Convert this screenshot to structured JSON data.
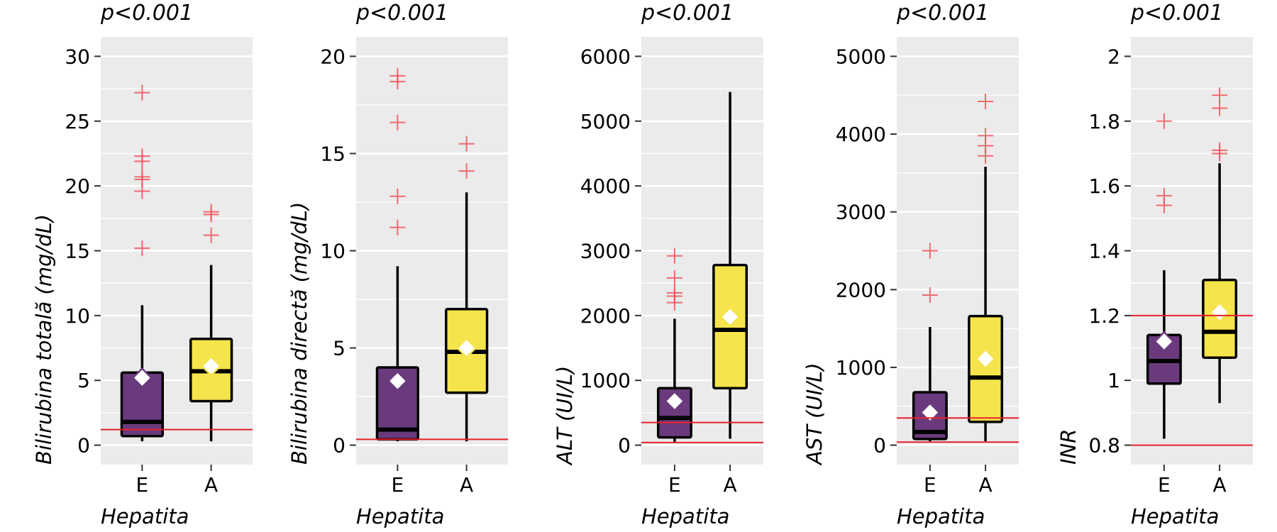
{
  "colors": {
    "panel_bg": "#EBEBEB",
    "grid": "#FFFFFF",
    "box_E": "#6B3A7D",
    "box_A": "#F5E44C",
    "outlier": "#F0545A",
    "ref_line": "#E8202A",
    "mean_marker": "#FFFFFF"
  },
  "chart_data": [
    {
      "type": "box",
      "pvalue": "p<0.001",
      "ylabel": "Bilirubina totală (mg/dL)",
      "xlabel": "Hepatita",
      "categories": [
        "E",
        "A"
      ],
      "ylim": [
        -1.5,
        31.5
      ],
      "yticks": [
        0,
        5,
        10,
        15,
        20,
        25,
        30
      ],
      "ytick_labels": [
        "0",
        "5",
        "10",
        "15",
        "20",
        "25",
        "30"
      ],
      "ref_lines": [
        1.2
      ],
      "boxes": [
        {
          "group": "E",
          "whisker_low": 0.3,
          "q1": 0.7,
          "median": 1.8,
          "q3": 5.6,
          "whisker_high": 10.8,
          "mean": 5.2,
          "outliers": [
            15.2,
            19.6,
            20.5,
            20.7,
            21.9,
            22.3,
            27.2
          ]
        },
        {
          "group": "A",
          "whisker_low": 0.3,
          "q1": 3.4,
          "median": 5.7,
          "q3": 8.2,
          "whisker_high": 13.9,
          "mean": 6.1,
          "outliers": [
            16.2,
            17.8,
            18.0
          ]
        }
      ]
    },
    {
      "type": "box",
      "pvalue": "p<0.001",
      "ylabel": "Bilirubina directă (mg/dL)",
      "xlabel": "Hepatita",
      "categories": [
        "E",
        "A"
      ],
      "ylim": [
        -1.0,
        21.0
      ],
      "yticks": [
        0,
        5,
        10,
        15,
        20
      ],
      "ytick_labels": [
        "0",
        "5",
        "10",
        "15",
        "20"
      ],
      "ref_lines": [
        0.3
      ],
      "boxes": [
        {
          "group": "E",
          "whisker_low": 0.2,
          "q1": 0.3,
          "median": 0.8,
          "q3": 4.0,
          "whisker_high": 9.2,
          "mean": 3.3,
          "outliers": [
            11.2,
            12.8,
            16.6,
            18.7,
            19.0
          ]
        },
        {
          "group": "A",
          "whisker_low": 0.2,
          "q1": 2.7,
          "median": 4.8,
          "q3": 7.0,
          "whisker_high": 13.0,
          "mean": 5.0,
          "outliers": [
            14.1,
            15.5
          ]
        }
      ]
    },
    {
      "type": "box",
      "pvalue": "p<0.001",
      "ylabel": "ALT (UI/L)",
      "xlabel": "Hepatita",
      "categories": [
        "E",
        "A"
      ],
      "ylim": [
        -300,
        6300
      ],
      "yticks": [
        0,
        1000,
        2000,
        3000,
        4000,
        5000,
        6000
      ],
      "ytick_labels": [
        "0",
        "1000",
        "2000",
        "3000",
        "4000",
        "5000",
        "6000"
      ],
      "ref_lines": [
        40,
        350
      ],
      "boxes": [
        {
          "group": "E",
          "whisker_low": 50,
          "q1": 120,
          "median": 420,
          "q3": 880,
          "whisker_high": 1950,
          "mean": 680,
          "outliers": [
            2200,
            2300,
            2350,
            2580,
            2920
          ]
        },
        {
          "group": "A",
          "whisker_low": 100,
          "q1": 880,
          "median": 1780,
          "q3": 2780,
          "whisker_high": 5450,
          "mean": 1980,
          "outliers": []
        }
      ]
    },
    {
      "type": "box",
      "pvalue": "p<0.001",
      "ylabel": "AST (UI/L)",
      "xlabel": "Hepatita",
      "categories": [
        "E",
        "A"
      ],
      "ylim": [
        -250,
        5250
      ],
      "yticks": [
        0,
        1000,
        2000,
        3000,
        4000,
        5000
      ],
      "ytick_labels": [
        "0",
        "1000",
        "2000",
        "3000",
        "4000",
        "5000"
      ],
      "ref_lines": [
        40,
        350
      ],
      "boxes": [
        {
          "group": "E",
          "whisker_low": 50,
          "q1": 80,
          "median": 170,
          "q3": 680,
          "whisker_high": 1520,
          "mean": 420,
          "outliers": [
            1930,
            2500
          ]
        },
        {
          "group": "A",
          "whisker_low": 50,
          "q1": 300,
          "median": 870,
          "q3": 1660,
          "whisker_high": 3580,
          "mean": 1110,
          "outliers": [
            3720,
            3850,
            3980,
            4420
          ]
        }
      ]
    },
    {
      "type": "box",
      "pvalue": "p<0.001",
      "ylabel": "INR",
      "xlabel": "Hepatita",
      "categories": [
        "E",
        "A"
      ],
      "ylim": [
        0.74,
        2.06
      ],
      "yticks": [
        0.8,
        1.0,
        1.2,
        1.4,
        1.6,
        1.8,
        2.0
      ],
      "ytick_labels": [
        "0.8",
        "1",
        "1.2",
        "1.4",
        "1.6",
        "1.8",
        "2"
      ],
      "ref_lines": [
        0.8,
        1.2
      ],
      "boxes": [
        {
          "group": "E",
          "whisker_low": 0.82,
          "q1": 0.99,
          "median": 1.06,
          "q3": 1.14,
          "whisker_high": 1.34,
          "mean": 1.12,
          "outliers": [
            1.54,
            1.57,
            1.8
          ]
        },
        {
          "group": "A",
          "whisker_low": 0.93,
          "q1": 1.07,
          "median": 1.15,
          "q3": 1.31,
          "whisker_high": 1.67,
          "mean": 1.21,
          "outliers": [
            1.7,
            1.71,
            1.84,
            1.88
          ]
        }
      ]
    }
  ]
}
